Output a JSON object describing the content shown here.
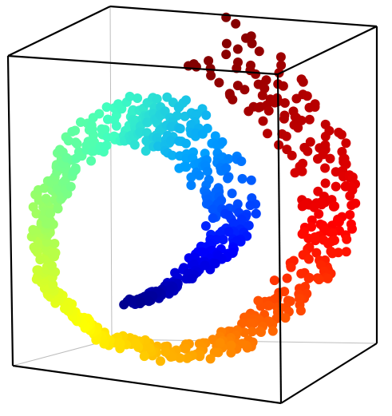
{
  "chart_data": {
    "type": "scatter",
    "projection": "3d",
    "shape": "swiss-roll",
    "title": "",
    "xlabel": "",
    "ylabel": "",
    "zlabel": "",
    "grid": false,
    "axis_ticks": false,
    "legend": "none",
    "colormap": "jet",
    "colormap_stops": [
      "#00008f",
      "#0000ff",
      "#00a0ff",
      "#40ffc0",
      "#a0ff60",
      "#ffff00",
      "#ff8000",
      "#ff0000",
      "#800000"
    ],
    "point_count_approx": 1000,
    "t_range": [
      0,
      1
    ],
    "height_range": [
      0,
      1
    ],
    "series": [
      {
        "x": [
          0.2,
          0.8
        ],
        "color_by": "t"
      }
    ]
  }
}
